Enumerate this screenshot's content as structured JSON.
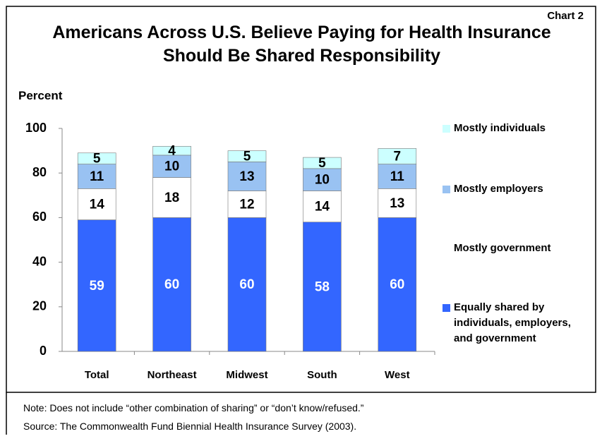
{
  "chart_data": {
    "type": "stacked_bar",
    "badge": "Chart 2",
    "title": "Americans Across U.S. Believe Paying for Health Insurance Should Be Shared Responsibility",
    "y_label": "Percent",
    "categories": [
      "Total",
      "Northeast",
      "Midwest",
      "South",
      "West"
    ],
    "series": [
      {
        "name": "Equally shared by individuals, employers, and government",
        "color": "#3366ff",
        "values": [
          59,
          60,
          60,
          58,
          60
        ]
      },
      {
        "name": "Mostly government",
        "color": "#ffffff",
        "values": [
          14,
          18,
          12,
          14,
          13
        ]
      },
      {
        "name": "Mostly employers",
        "color": "#99c2f2",
        "values": [
          11,
          10,
          13,
          10,
          11
        ]
      },
      {
        "name": "Mostly individuals",
        "color": "#ccffff",
        "values": [
          5,
          4,
          5,
          5,
          7
        ]
      }
    ],
    "ylim": [
      0,
      100
    ],
    "yticks": [
      0,
      20,
      40,
      60,
      80,
      100
    ],
    "note": "Note: Does not include “other combination of sharing” or “don’t know/refused.”",
    "source": "Source: The Commonwealth Fund Biennial Health Insurance Survey (2003)."
  }
}
